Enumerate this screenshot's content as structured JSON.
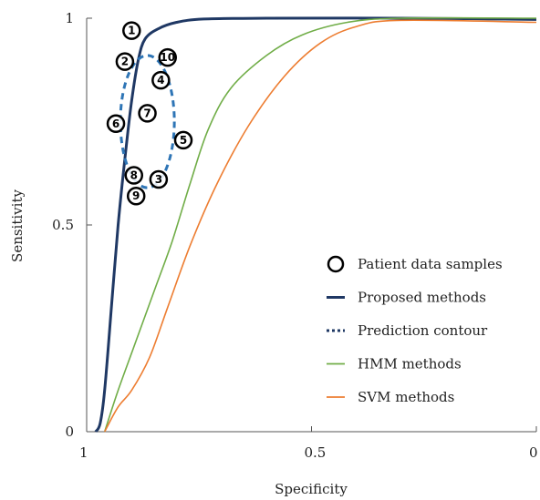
{
  "chart_data": {
    "type": "line",
    "xlabel": "Specificity",
    "ylabel": "Sensitivity",
    "xlim": [
      1,
      0
    ],
    "ylim": [
      0,
      1
    ],
    "x_ticks": [
      {
        "value": 1,
        "label": "1"
      },
      {
        "value": 0.5,
        "label": "0.5"
      },
      {
        "value": 0,
        "label": "0"
      }
    ],
    "y_ticks": [
      {
        "value": 0,
        "label": "0"
      },
      {
        "value": 0.5,
        "label": "0.5"
      },
      {
        "value": 1,
        "label": "1"
      }
    ],
    "legend_position": "right",
    "series": [
      {
        "name": "Proposed methods",
        "color": "#1f3864",
        "style": "solid",
        "points": [
          [
            0.98,
            0
          ],
          [
            0.97,
            0.02
          ],
          [
            0.96,
            0.1
          ],
          [
            0.945,
            0.3
          ],
          [
            0.93,
            0.5
          ],
          [
            0.915,
            0.66
          ],
          [
            0.9,
            0.8
          ],
          [
            0.885,
            0.9
          ],
          [
            0.87,
            0.95
          ],
          [
            0.84,
            0.975
          ],
          [
            0.8,
            0.99
          ],
          [
            0.74,
            0.998
          ],
          [
            0.6,
            1
          ],
          [
            0.3,
            1
          ],
          [
            0.0,
            0.997
          ]
        ]
      },
      {
        "name": "HMM methods",
        "color": "#70ad47",
        "style": "solid",
        "points": [
          [
            0.96,
            0
          ],
          [
            0.93,
            0.1
          ],
          [
            0.89,
            0.22
          ],
          [
            0.85,
            0.34
          ],
          [
            0.81,
            0.46
          ],
          [
            0.77,
            0.6
          ],
          [
            0.73,
            0.73
          ],
          [
            0.68,
            0.83
          ],
          [
            0.6,
            0.91
          ],
          [
            0.52,
            0.96
          ],
          [
            0.42,
            0.99
          ],
          [
            0.3,
            1
          ],
          [
            0.0,
            1
          ]
        ]
      },
      {
        "name": "SVM methods",
        "color": "#ed7d31",
        "style": "solid",
        "points": [
          [
            0.96,
            0
          ],
          [
            0.93,
            0.06
          ],
          [
            0.9,
            0.1
          ],
          [
            0.86,
            0.18
          ],
          [
            0.82,
            0.3
          ],
          [
            0.77,
            0.45
          ],
          [
            0.71,
            0.6
          ],
          [
            0.64,
            0.74
          ],
          [
            0.56,
            0.86
          ],
          [
            0.48,
            0.94
          ],
          [
            0.4,
            0.98
          ],
          [
            0.3,
            0.995
          ],
          [
            0.0,
            0.99
          ]
        ]
      }
    ],
    "samples": [
      {
        "label": "1",
        "x": 0.9,
        "y": 0.97
      },
      {
        "label": "2",
        "x": 0.915,
        "y": 0.895
      },
      {
        "label": "4",
        "x": 0.835,
        "y": 0.85
      },
      {
        "label": "10",
        "x": 0.82,
        "y": 0.905
      },
      {
        "label": "6",
        "x": 0.935,
        "y": 0.745
      },
      {
        "label": "7",
        "x": 0.865,
        "y": 0.77
      },
      {
        "label": "5",
        "x": 0.785,
        "y": 0.705
      },
      {
        "label": "8",
        "x": 0.895,
        "y": 0.62
      },
      {
        "label": "3",
        "x": 0.84,
        "y": 0.61
      },
      {
        "label": "9",
        "x": 0.89,
        "y": 0.57
      }
    ],
    "prediction_contour": {
      "name": "Prediction contour",
      "color": "#2e75b6",
      "style": "dashed",
      "center": [
        0.865,
        0.75
      ],
      "radius_x": 0.06,
      "radius_y": 0.16
    },
    "legend": [
      {
        "label": "Patient data samples",
        "kind": "circle",
        "color": "#000000"
      },
      {
        "label": "Proposed methods",
        "kind": "line",
        "color": "#1f3864"
      },
      {
        "label": "Prediction contour",
        "kind": "dotted",
        "color": "#1f3864"
      },
      {
        "label": "HMM methods",
        "kind": "line",
        "color": "#70ad47"
      },
      {
        "label": "SVM methods",
        "kind": "line",
        "color": "#ed7d31"
      }
    ]
  }
}
